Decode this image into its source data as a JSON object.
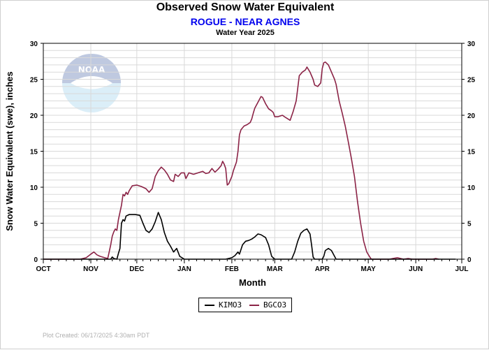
{
  "header": {
    "title": "Observed Snow Water Equivalent",
    "subtitle": "ROGUE - NEAR AGNES",
    "water_year": "Water Year 2025"
  },
  "footer": {
    "created": "Plot Created: 06/17/2025 4:30am PDT"
  },
  "watermark": {
    "text": "NOAA",
    "icon": "noaa-logo"
  },
  "colors": {
    "kimo3": "#000000",
    "bgco3": "#8b2346",
    "grid": "#d9d9d9",
    "subtitle": "#0000ee"
  },
  "chart_data": {
    "type": "line",
    "title": "Observed Snow Water Equivalent",
    "subtitle": "ROGUE - NEAR AGNES",
    "xlabel": "Month",
    "ylabel": "Snow Water Equivalent (swe),  inches",
    "x_tick_labels": [
      "OCT",
      "NOV",
      "DEC",
      "JAN",
      "FEB",
      "MAR",
      "APR",
      "MAY",
      "JUN",
      "JUL"
    ],
    "y_ticks": [
      0,
      5,
      10,
      15,
      20,
      25,
      30
    ],
    "xlim": [
      "2024-10-01",
      "2025-07-01"
    ],
    "ylim": [
      0,
      30
    ],
    "grid": true,
    "right_axis": true,
    "legend_position": "bottom-center",
    "series": [
      {
        "name": "KIMO3",
        "color": "#000000",
        "points": [
          [
            "2024-10-01",
            0
          ],
          [
            "2024-11-01",
            0
          ],
          [
            "2024-11-14",
            0
          ],
          [
            "2024-11-15",
            0.3
          ],
          [
            "2024-11-16",
            0.1
          ],
          [
            "2024-11-18",
            0
          ],
          [
            "2024-11-19",
            0.8
          ],
          [
            "2024-11-20",
            1.5
          ],
          [
            "2024-11-21",
            5.0
          ],
          [
            "2024-11-22",
            5.5
          ],
          [
            "2024-11-23",
            5.3
          ],
          [
            "2024-11-24",
            6.0
          ],
          [
            "2024-11-26",
            6.2
          ],
          [
            "2024-11-30",
            6.2
          ],
          [
            "2024-12-03",
            6.1
          ],
          [
            "2024-12-05",
            5.0
          ],
          [
            "2024-12-07",
            4.0
          ],
          [
            "2024-12-09",
            3.7
          ],
          [
            "2024-12-11",
            4.2
          ],
          [
            "2024-12-13",
            5.2
          ],
          [
            "2024-12-15",
            6.5
          ],
          [
            "2024-12-17",
            5.5
          ],
          [
            "2024-12-19",
            3.7
          ],
          [
            "2024-12-21",
            2.5
          ],
          [
            "2024-12-23",
            1.8
          ],
          [
            "2024-12-25",
            1.0
          ],
          [
            "2024-12-27",
            1.5
          ],
          [
            "2024-12-29",
            0.4
          ],
          [
            "2025-01-01",
            0
          ],
          [
            "2025-01-28",
            0
          ],
          [
            "2025-02-01",
            0.2
          ],
          [
            "2025-02-03",
            0.5
          ],
          [
            "2025-02-05",
            1.0
          ],
          [
            "2025-02-06",
            0.7
          ],
          [
            "2025-02-08",
            2.0
          ],
          [
            "2025-02-10",
            2.5
          ],
          [
            "2025-02-12",
            2.6
          ],
          [
            "2025-02-14",
            2.8
          ],
          [
            "2025-02-16",
            3.1
          ],
          [
            "2025-02-18",
            3.5
          ],
          [
            "2025-02-20",
            3.4
          ],
          [
            "2025-02-23",
            3.0
          ],
          [
            "2025-02-25",
            2.0
          ],
          [
            "2025-02-27",
            0.4
          ],
          [
            "2025-03-01",
            0
          ],
          [
            "2025-03-12",
            0
          ],
          [
            "2025-03-14",
            1.0
          ],
          [
            "2025-03-16",
            2.5
          ],
          [
            "2025-03-18",
            3.6
          ],
          [
            "2025-03-20",
            4.0
          ],
          [
            "2025-03-22",
            4.2
          ],
          [
            "2025-03-24",
            3.5
          ],
          [
            "2025-03-25",
            2.0
          ],
          [
            "2025-03-26",
            0.3
          ],
          [
            "2025-03-27",
            0
          ],
          [
            "2025-04-01",
            0
          ],
          [
            "2025-04-02",
            0.4
          ],
          [
            "2025-04-03",
            1.2
          ],
          [
            "2025-04-05",
            1.5
          ],
          [
            "2025-04-07",
            1.2
          ],
          [
            "2025-04-09",
            0.4
          ],
          [
            "2025-04-10",
            0
          ],
          [
            "2025-06-27",
            0
          ]
        ]
      },
      {
        "name": "BGCO3",
        "color": "#8b2346",
        "points": [
          [
            "2024-10-01",
            0
          ],
          [
            "2024-10-25",
            0
          ],
          [
            "2024-10-29",
            0.2
          ],
          [
            "2024-11-01",
            0.7
          ],
          [
            "2024-11-03",
            1.0
          ],
          [
            "2024-11-05",
            0.6
          ],
          [
            "2024-11-07",
            0.4
          ],
          [
            "2024-11-10",
            0.2
          ],
          [
            "2024-11-12",
            0.1
          ],
          [
            "2024-11-13",
            1.0
          ],
          [
            "2024-11-14",
            2.0
          ],
          [
            "2024-11-15",
            3.2
          ],
          [
            "2024-11-16",
            3.8
          ],
          [
            "2024-11-17",
            4.2
          ],
          [
            "2024-11-18",
            4.0
          ],
          [
            "2024-11-19",
            5.5
          ],
          [
            "2024-11-20",
            6.5
          ],
          [
            "2024-11-21",
            7.5
          ],
          [
            "2024-11-22",
            9.0
          ],
          [
            "2024-11-23",
            8.8
          ],
          [
            "2024-11-24",
            9.3
          ],
          [
            "2024-11-25",
            9.0
          ],
          [
            "2024-11-26",
            9.5
          ],
          [
            "2024-11-28",
            10.2
          ],
          [
            "2024-12-01",
            10.3
          ],
          [
            "2024-12-04",
            10.1
          ],
          [
            "2024-12-07",
            9.8
          ],
          [
            "2024-12-09",
            9.3
          ],
          [
            "2024-12-11",
            9.8
          ],
          [
            "2024-12-13",
            11.5
          ],
          [
            "2024-12-15",
            12.3
          ],
          [
            "2024-12-17",
            12.8
          ],
          [
            "2024-12-19",
            12.4
          ],
          [
            "2024-12-21",
            11.8
          ],
          [
            "2024-12-23",
            11.0
          ],
          [
            "2024-12-25",
            10.8
          ],
          [
            "2024-12-26",
            11.8
          ],
          [
            "2024-12-28",
            11.5
          ],
          [
            "2024-12-30",
            12.0
          ],
          [
            "2025-01-01",
            12.0
          ],
          [
            "2025-01-02",
            11.2
          ],
          [
            "2025-01-04",
            12.0
          ],
          [
            "2025-01-07",
            11.8
          ],
          [
            "2025-01-10",
            12.0
          ],
          [
            "2025-01-13",
            12.2
          ],
          [
            "2025-01-15",
            11.9
          ],
          [
            "2025-01-17",
            12.0
          ],
          [
            "2025-01-19",
            12.6
          ],
          [
            "2025-01-21",
            12.1
          ],
          [
            "2025-01-23",
            12.5
          ],
          [
            "2025-01-25",
            13.0
          ],
          [
            "2025-01-26",
            13.6
          ],
          [
            "2025-01-27",
            13.2
          ],
          [
            "2025-01-28",
            12.6
          ],
          [
            "2025-01-29",
            10.3
          ],
          [
            "2025-01-30",
            10.5
          ],
          [
            "2025-02-01",
            11.5
          ],
          [
            "2025-02-02",
            12.3
          ],
          [
            "2025-02-04",
            13.5
          ],
          [
            "2025-02-05",
            15.0
          ],
          [
            "2025-02-06",
            17.3
          ],
          [
            "2025-02-07",
            18.0
          ],
          [
            "2025-02-09",
            18.5
          ],
          [
            "2025-02-11",
            18.7
          ],
          [
            "2025-02-13",
            19.0
          ],
          [
            "2025-02-14",
            19.5
          ],
          [
            "2025-02-15",
            20.3
          ],
          [
            "2025-02-16",
            21.0
          ],
          [
            "2025-02-18",
            21.8
          ],
          [
            "2025-02-20",
            22.6
          ],
          [
            "2025-02-21",
            22.5
          ],
          [
            "2025-02-23",
            21.6
          ],
          [
            "2025-02-25",
            20.9
          ],
          [
            "2025-02-27",
            20.6
          ],
          [
            "2025-02-28",
            20.4
          ],
          [
            "2025-03-01",
            19.8
          ],
          [
            "2025-03-03",
            19.8
          ],
          [
            "2025-03-06",
            20.0
          ],
          [
            "2025-03-08",
            19.7
          ],
          [
            "2025-03-11",
            19.3
          ],
          [
            "2025-03-13",
            20.5
          ],
          [
            "2025-03-15",
            22.0
          ],
          [
            "2025-03-17",
            25.5
          ],
          [
            "2025-03-19",
            26.0
          ],
          [
            "2025-03-21",
            26.3
          ],
          [
            "2025-03-22",
            26.7
          ],
          [
            "2025-03-24",
            26.0
          ],
          [
            "2025-03-26",
            25.0
          ],
          [
            "2025-03-27",
            24.2
          ],
          [
            "2025-03-29",
            24.0
          ],
          [
            "2025-03-31",
            24.5
          ],
          [
            "2025-04-01",
            26.5
          ],
          [
            "2025-04-02",
            27.3
          ],
          [
            "2025-04-03",
            27.4
          ],
          [
            "2025-04-05",
            27.0
          ],
          [
            "2025-04-07",
            26.0
          ],
          [
            "2025-04-09",
            25.0
          ],
          [
            "2025-04-10",
            24.3
          ],
          [
            "2025-04-12",
            22.0
          ],
          [
            "2025-04-14",
            20.3
          ],
          [
            "2025-04-16",
            18.5
          ],
          [
            "2025-04-18",
            16.3
          ],
          [
            "2025-04-20",
            14.0
          ],
          [
            "2025-04-22",
            11.5
          ],
          [
            "2025-04-24",
            8.0
          ],
          [
            "2025-04-26",
            5.0
          ],
          [
            "2025-04-28",
            2.5
          ],
          [
            "2025-04-30",
            1.0
          ],
          [
            "2025-05-02",
            0.3
          ],
          [
            "2025-05-03",
            0
          ],
          [
            "2025-05-15",
            0
          ],
          [
            "2025-05-17",
            0.1
          ],
          [
            "2025-05-20",
            0.2
          ],
          [
            "2025-05-24",
            0
          ],
          [
            "2025-05-27",
            0.1
          ],
          [
            "2025-05-30",
            0
          ],
          [
            "2025-06-12",
            0
          ],
          [
            "2025-06-14",
            0.1
          ],
          [
            "2025-06-16",
            0
          ]
        ]
      }
    ]
  }
}
